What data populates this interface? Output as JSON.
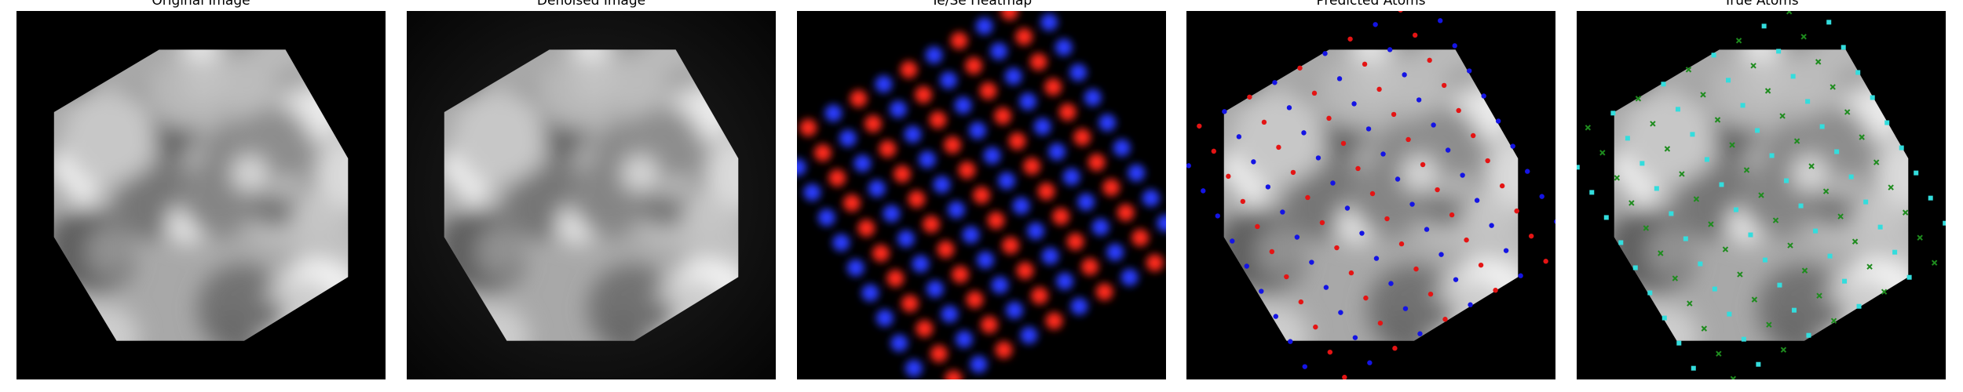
{
  "panels": [
    {
      "title": "Original Image"
    },
    {
      "title": "Denoised Image"
    },
    {
      "title": "Te/Se Heatmap"
    },
    {
      "title": "Predicted Atoms"
    },
    {
      "title": "True Atoms"
    }
  ]
}
